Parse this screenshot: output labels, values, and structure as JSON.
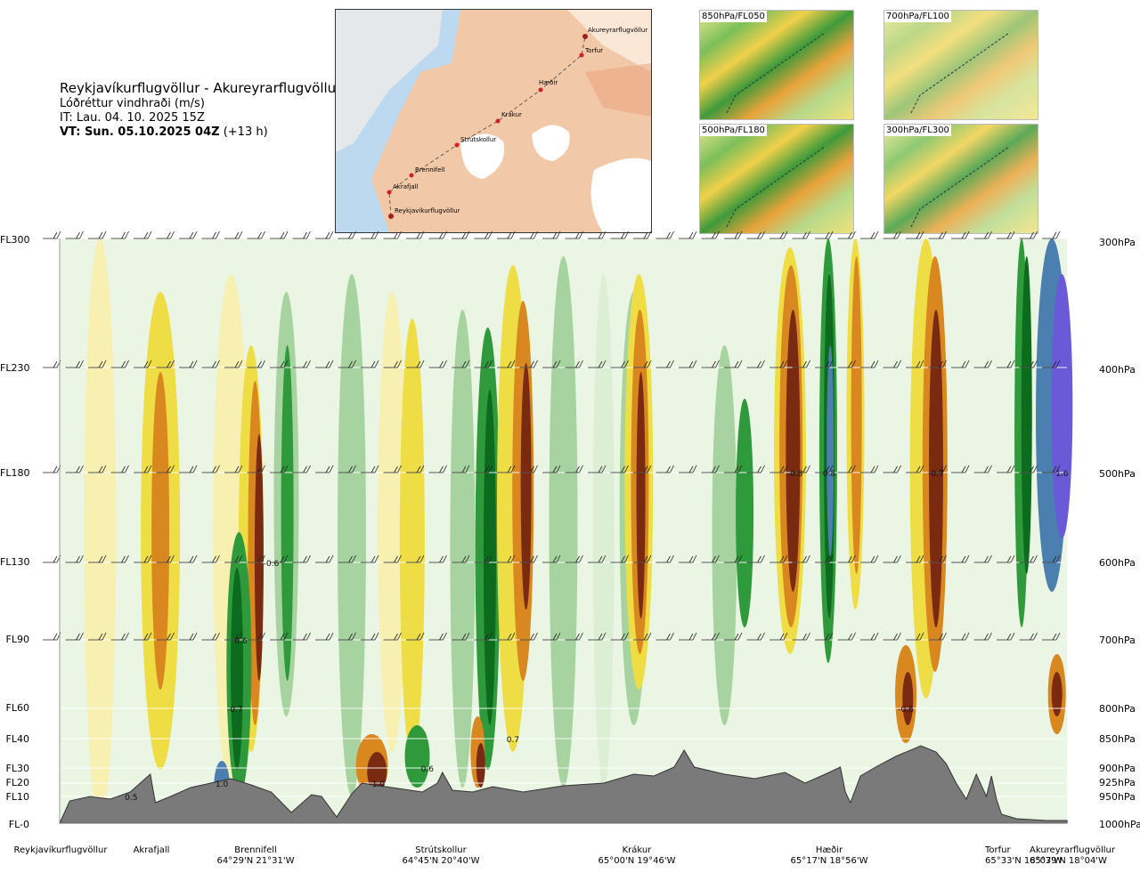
{
  "header": {
    "route": "Reykjavíkurflugvöllur - Akureyrarflugvöllur",
    "variable": "Lóðréttur vindhraði (m/s)",
    "issue_time": "IT: Lau. 04. 10. 2025 15Z",
    "valid_time_bold": "VT: Sun. 05.10.2025 04Z",
    "valid_time_offset": "(+13 h)"
  },
  "map": {
    "waypoints": [
      "Akureyrarflugvöllur",
      "Torfur",
      "Hæðir",
      "Krákur",
      "Strútskollur",
      "Brennifell",
      "Akrafjall",
      "Reykjavíkurflugvöllur"
    ]
  },
  "thumbnails": [
    "850hPa/FL050",
    "700hPa/FL100",
    "500hPa/FL180",
    "300hPa/FL300"
  ],
  "colors": {
    "strong_down": "#7a2a10",
    "down": "#d9871f",
    "weak_down": "#eedd44",
    "faint_down": "#f8f0b0",
    "faint_up": "#dcefd5",
    "weak_up": "#a6d3a0",
    "up": "#2f9a3b",
    "strong_up": "#0d6b1e",
    "very_strong_up": "#4a7fb0",
    "extreme_up": "#6a5ad8",
    "terrain": "#7a7a7a"
  },
  "chart_data": {
    "type": "heatmap",
    "variable": "Lóðréttur vindhraði (m/s)",
    "y_left_labels": [
      "FL300",
      "FL230",
      "FL180",
      "FL130",
      "FL90",
      "FL60",
      "FL40",
      "FL30",
      "FL20",
      "FL10",
      "FL-0"
    ],
    "y_right_labels": [
      "300hPa",
      "400hPa",
      "500hPa",
      "600hPa",
      "700hPa",
      "800hPa",
      "850hPa",
      "900hPa",
      "925hPa",
      "950hPa",
      "1000hPa"
    ],
    "x_locations": [
      {
        "name": "Reykjavíkurflugvöllur",
        "coord": "",
        "pos": 0.0
      },
      {
        "name": "Akrafjall",
        "coord": "",
        "pos": 0.085
      },
      {
        "name": "Brennifell",
        "coord": "64°29'N 21°31'W",
        "pos": 0.18
      },
      {
        "name": "Strútskollur",
        "coord": "64°45'N 20°40'W",
        "pos": 0.38
      },
      {
        "name": "Krákur",
        "coord": "65°00'N 19°46'W",
        "pos": 0.57
      },
      {
        "name": "Hæðir",
        "coord": "65°17'N 18°56'W",
        "pos": 0.76
      },
      {
        "name": "Torfur",
        "coord": "65°33'N 18°07'W",
        "pos": 0.935
      },
      {
        "name": "Akureyrarflugvöllur",
        "coord": "65°39'N 18°04'W",
        "pos": 1.0
      }
    ],
    "annotations": [
      {
        "text": "-0.8",
        "x": 0.73,
        "level": "FL180"
      },
      {
        "text": "0.8",
        "x": 0.764,
        "level": "FL180"
      },
      {
        "text": "-0.7",
        "x": 0.87,
        "level": "FL180"
      },
      {
        "text": "1.6",
        "x": 0.995,
        "level": "FL180"
      },
      {
        "text": "-0.6",
        "x": 0.21,
        "level": "FL130"
      },
      {
        "text": "0.6",
        "x": 0.18,
        "level": "FL90"
      },
      {
        "text": "-0.7",
        "x": 0.174,
        "level": "FL60"
      },
      {
        "text": "-0.6",
        "x": 0.84,
        "level": "FL60"
      },
      {
        "text": "0.7",
        "x": 0.45,
        "level": "FL40"
      },
      {
        "text": "0.6",
        "x": 0.365,
        "level": "FL30"
      },
      {
        "text": "1.0",
        "x": 0.161,
        "level": "FL20"
      },
      {
        "text": "-1.0",
        "x": 0.315,
        "level": "FL20"
      },
      {
        "text": "0.5",
        "x": 0.071,
        "level": "FL10"
      }
    ]
  }
}
